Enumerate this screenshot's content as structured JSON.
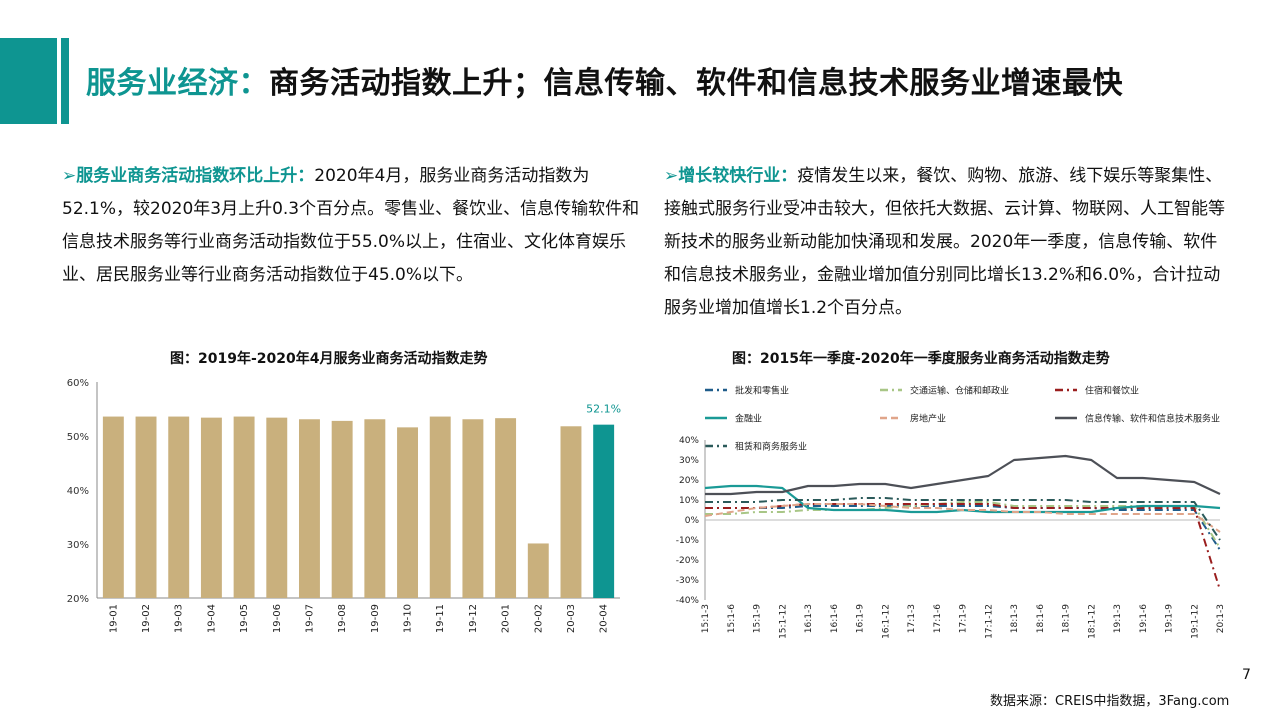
{
  "header": {
    "title_part1": "服务业经济：",
    "title_part2": "商务活动指数上升；信息传输、软件和信息技术服务业增速最快"
  },
  "left_text": {
    "arrow": "➢",
    "lead": "服务业商务活动指数环比上升：",
    "body": "2020年4月，服务业商务活动指数为52.1%，较2020年3月上升0.3个百分点。零售业、餐饮业、信息传输软件和信息技术服务等行业商务活动指数位于55.0%以上，住宿业、文化体育娱乐业、居民服务业等行业商务活动指数位于45.0%以下。"
  },
  "right_text": {
    "arrow": "➢",
    "lead": "增长较快行业：",
    "body": "疫情发生以来，餐饮、购物、旅游、线下娱乐等聚集性、接触式服务行业受冲击较大，但依托大数据、云计算、物联网、人工智能等新技术的服务业新动能加快涌现和发展。2020年一季度，信息传输、软件和信息技术服务业，金融业增加值分别同比增长13.2%和6.0%，合计拉动服务业增加值增长1.2个百分点。"
  },
  "chart_data": [
    {
      "type": "bar",
      "title": "图：2019年-2020年4月服务业商务活动指数走势",
      "categories": [
        "19-01",
        "19-02",
        "19-03",
        "19-04",
        "19-05",
        "19-06",
        "19-07",
        "19-08",
        "19-09",
        "19-10",
        "19-11",
        "19-12",
        "20-01",
        "20-02",
        "20-03",
        "20-04"
      ],
      "values": [
        53.6,
        53.6,
        53.6,
        53.4,
        53.6,
        53.4,
        53.1,
        52.8,
        53.1,
        51.6,
        53.6,
        53.1,
        53.3,
        30.1,
        51.8,
        52.1
      ],
      "ylim": [
        20,
        60
      ],
      "yticks": [
        "20%",
        "30%",
        "40%",
        "50%",
        "60%"
      ],
      "highlight_label": "52.1%",
      "colors": {
        "bar": "#c9b07d",
        "highlight": "#0e9591"
      }
    },
    {
      "type": "line",
      "title": "图：2015年一季度-2020年一季度服务业商务活动指数走势",
      "ylim": [
        -40,
        40
      ],
      "yticks": [
        "40%",
        "30%",
        "20%",
        "10%",
        "0%",
        "-10%",
        "-20%",
        "-30%",
        "-40%"
      ],
      "x": [
        "15:1-3",
        "15:1-6",
        "15:1-9",
        "15:1-12",
        "16:1-3",
        "16:1-6",
        "16:1-9",
        "16:1-12",
        "17:1-3",
        "17:1-6",
        "17:1-9",
        "17:1-12",
        "18:1-3",
        "18:1-6",
        "18:1-9",
        "18:1-12",
        "19:1-3",
        "19:1-6",
        "19:1-9",
        "19:1-12",
        "20:1-3"
      ],
      "legend_position": "top",
      "series": [
        {
          "name": "批发和零售业",
          "style": "dashdot",
          "color": "#1f5c8a",
          "values": [
            6,
            6,
            6,
            6,
            7,
            7,
            7,
            7,
            7,
            7,
            7,
            7,
            6,
            6,
            6,
            6,
            5,
            5,
            5,
            5,
            -15
          ]
        },
        {
          "name": "交通运输、仓储和邮政业",
          "style": "dashdot",
          "color": "#a8c686",
          "values": [
            3,
            3,
            4,
            4,
            5,
            5,
            5,
            6,
            7,
            8,
            9,
            9,
            7,
            7,
            7,
            7,
            7,
            7,
            7,
            7,
            -14
          ]
        },
        {
          "name": "住宿和餐饮业",
          "style": "dashdot",
          "color": "#9a1e1e",
          "values": [
            6,
            6,
            6,
            7,
            8,
            8,
            8,
            8,
            8,
            8,
            8,
            8,
            6,
            6,
            6,
            6,
            6,
            6,
            6,
            6,
            -35
          ]
        },
        {
          "name": "金融业",
          "style": "solid",
          "color": "#1a9a96",
          "values": [
            16,
            17,
            17,
            16,
            6,
            5,
            5,
            5,
            4,
            4,
            5,
            4,
            4,
            4,
            4,
            4,
            6,
            7,
            7,
            7,
            6
          ]
        },
        {
          "name": "房地产业",
          "style": "dash",
          "color": "#e0a58a",
          "values": [
            2,
            4,
            6,
            7,
            8,
            8,
            8,
            7,
            6,
            6,
            5,
            5,
            4,
            4,
            3,
            3,
            3,
            3,
            3,
            3,
            -6
          ]
        },
        {
          "name": "信息传输、软件和信息技术服务业",
          "style": "solid",
          "color": "#4d5057",
          "values": [
            13,
            13,
            14,
            14,
            17,
            17,
            18,
            18,
            16,
            18,
            20,
            22,
            30,
            31,
            32,
            30,
            21,
            21,
            20,
            19,
            13
          ]
        },
        {
          "name": "租赁和商务服务业",
          "style": "dashdot",
          "color": "#2b5a5a",
          "values": [
            9,
            9,
            9,
            10,
            10,
            10,
            11,
            11,
            10,
            10,
            10,
            10,
            10,
            10,
            10,
            9,
            9,
            9,
            9,
            9,
            -10
          ]
        }
      ]
    }
  ],
  "footer": {
    "page_number": "7",
    "source": "数据来源：CREIS中指数据，3Fang.com"
  }
}
